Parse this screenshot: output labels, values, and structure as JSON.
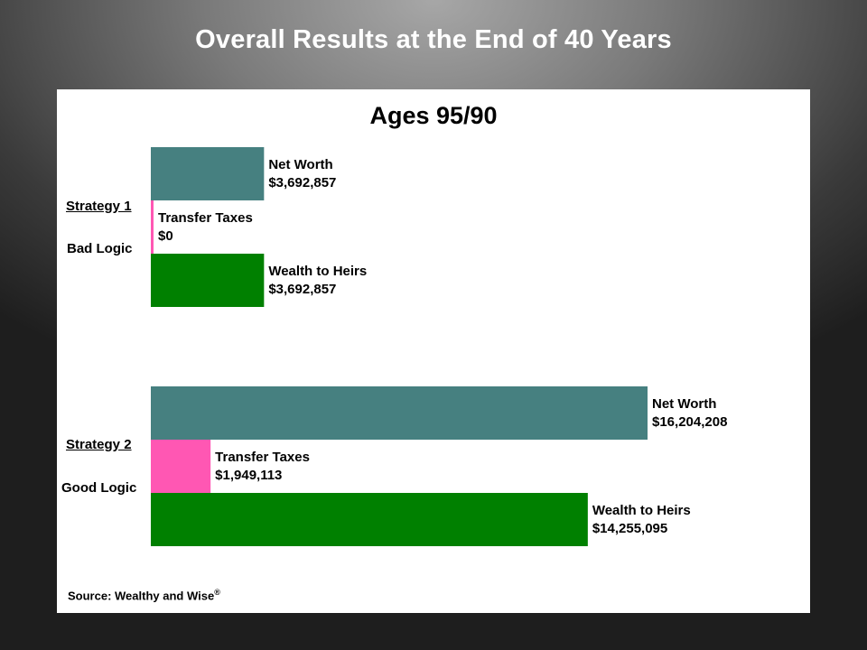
{
  "slide": {
    "title": "Overall Results at the End of 40 Years"
  },
  "chart_data": {
    "type": "bar",
    "orientation": "horizontal",
    "title": "Ages 95/90",
    "source": "Source:  Wealthy and Wise",
    "source_mark": "®",
    "colors": {
      "Net Worth": "#468080",
      "Transfer Taxes": "#ff57b3",
      "Wealth to Heirs": "#008000"
    },
    "groups": [
      {
        "label": "Strategy 1",
        "sublabel": "Bad Logic",
        "bars": [
          {
            "name": "Net Worth",
            "value": 3692857,
            "display": "$3,692,857"
          },
          {
            "name": "Transfer Taxes",
            "value": 0,
            "display": "$0"
          },
          {
            "name": "Wealth to Heirs",
            "value": 3692857,
            "display": "$3,692,857"
          }
        ]
      },
      {
        "label": "Strategy 2",
        "sublabel": "Good Logic",
        "bars": [
          {
            "name": "Net Worth",
            "value": 16204208,
            "display": "$16,204,208"
          },
          {
            "name": "Transfer Taxes",
            "value": 1949113,
            "display": "$1,949,113"
          },
          {
            "name": "Wealth to Heirs",
            "value": 14255095,
            "display": "$14,255,095"
          }
        ]
      }
    ],
    "grid": false,
    "legend": "none"
  }
}
